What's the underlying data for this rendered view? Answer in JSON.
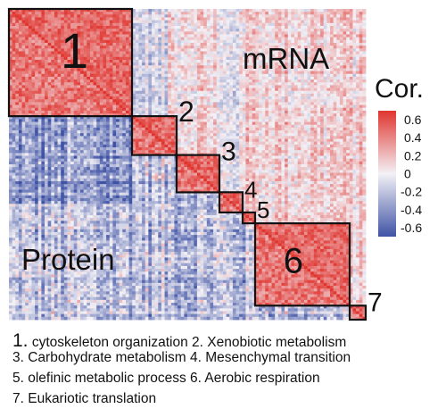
{
  "chart_data": {
    "type": "heatmap",
    "title": "",
    "upper_triangle_label": "mRNA",
    "lower_triangle_label": "Protein",
    "colorbar": {
      "title": "Cor.",
      "ticks": [
        "0.6",
        "0.4",
        "0.2",
        "0",
        "-0.2",
        "-0.4",
        "-0.6"
      ],
      "tick_values": [
        0.6,
        0.4,
        0.2,
        0,
        -0.2,
        -0.4,
        -0.6
      ],
      "range": [
        -0.7,
        0.7
      ],
      "colors": {
        "low": "#3f53a5",
        "mid": "#f3f1f6",
        "high": "#e0352f"
      }
    },
    "modules": [
      {
        "id": "1",
        "name": "cytoskeleton organization",
        "start": 0.0,
        "end": 0.345
      },
      {
        "id": "2",
        "name": "Xenobiotic metabolism",
        "start": 0.345,
        "end": 0.47
      },
      {
        "id": "3",
        "name": "Carbohydrate metabolism",
        "start": 0.47,
        "end": 0.59
      },
      {
        "id": "4",
        "name": "Mesenchymal transition",
        "start": 0.59,
        "end": 0.655
      },
      {
        "id": "5",
        "name": "olefinic metabolic process",
        "start": 0.655,
        "end": 0.69
      },
      {
        "id": "6",
        "name": "Aerobic respiration",
        "start": 0.69,
        "end": 0.955
      },
      {
        "id": "7",
        "name": "Eukariotic translation",
        "start": 0.955,
        "end": 1.0
      }
    ]
  },
  "caption": {
    "line1": {
      "n1": "1.",
      "t1": " cytoskeleton organization ",
      "n2": "2.",
      "t2": " Xenobiotic metabolism"
    },
    "line2": "3. Carbohydrate metabolism 4. Mesenchymal transition",
    "line3": "5. olefinic metabolic process 6. Aerobic respiration",
    "line4": "7. Eukariotic translation"
  }
}
